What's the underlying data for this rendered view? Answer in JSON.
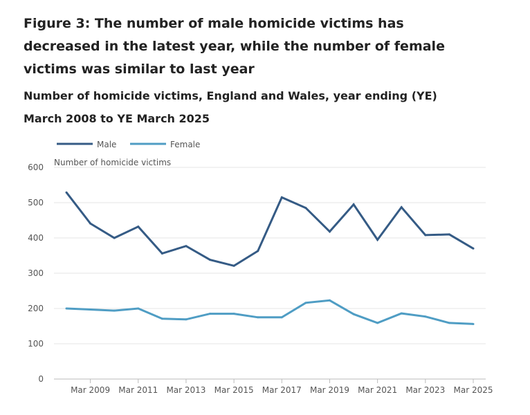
{
  "title": "Figure 3: The number of male homicide victims has decreased in the latest year, while the number of female victims was similar to last year",
  "chart_data": {
    "type": "line",
    "title": "Figure 3: The number of male homicide victims has decreased in the latest year, while the number of female victims was similar to last year",
    "subtitle": "Number of homicide victims, England and Wales, year ending (YE) March 2008 to YE March 2025",
    "ylabel": "Number of homicide victims",
    "xlabel": "",
    "ylim": [
      0,
      600
    ],
    "yticks": [
      0,
      100,
      200,
      300,
      400,
      500,
      600
    ],
    "x": [
      2008,
      2009,
      2010,
      2011,
      2012,
      2013,
      2014,
      2015,
      2016,
      2017,
      2018,
      2019,
      2020,
      2021,
      2022,
      2023,
      2024,
      2025
    ],
    "xtick_labels": [
      "Mar 2009",
      "Mar 2011",
      "Mar 2013",
      "Mar 2015",
      "Mar 2017",
      "Mar 2019",
      "Mar 2021",
      "Mar 2023",
      "Mar 2025"
    ],
    "xtick_years": [
      2009,
      2011,
      2013,
      2015,
      2017,
      2019,
      2021,
      2023,
      2025
    ],
    "grid": true,
    "legend_position": "top-left",
    "series": [
      {
        "name": "Male",
        "color": "#355b85",
        "values": [
          529,
          441,
          400,
          432,
          356,
          377,
          338,
          321,
          363,
          515,
          485,
          418,
          495,
          395,
          487,
          408,
          410,
          370
        ]
      },
      {
        "name": "Female",
        "color": "#4f9dc4",
        "values": [
          200,
          197,
          194,
          200,
          171,
          169,
          185,
          185,
          175,
          175,
          216,
          223,
          184,
          159,
          186,
          177,
          159,
          156
        ]
      }
    ]
  }
}
